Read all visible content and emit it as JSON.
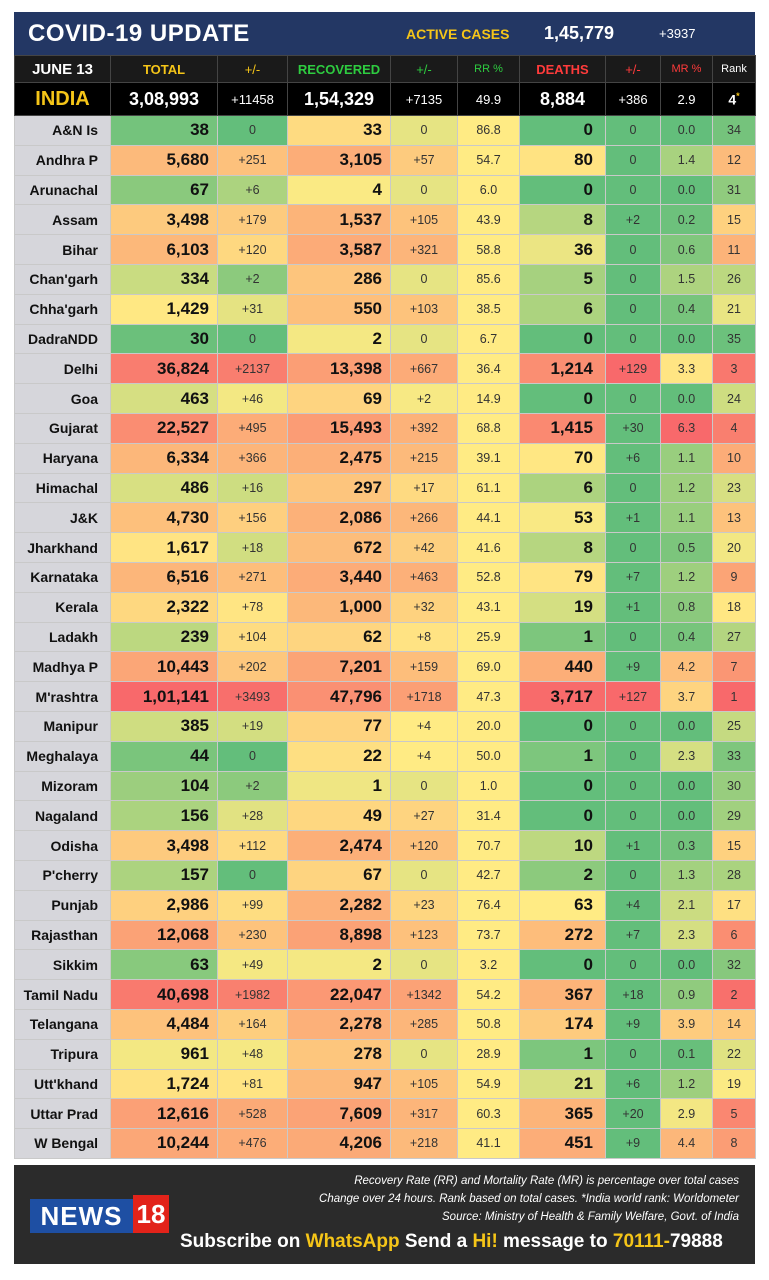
{
  "header": {
    "title": "COVID-19 UPDATE",
    "active_label": "ACTIVE CASES",
    "active_value": "1,45,779",
    "active_delta": "+3937"
  },
  "columns": {
    "date": "JUNE 13",
    "total": "TOTAL",
    "total_delta": "+/-",
    "recovered": "RECOVERED",
    "recovered_delta": "+/-",
    "rr": "RR %",
    "deaths": "DEATHS",
    "deaths_delta": "+/-",
    "mr": "MR %",
    "rank": "Rank"
  },
  "column_colors": {
    "total": "#f5c518",
    "recovered": "#2ecc40",
    "rr": "#2ecc40",
    "deaths": "#ff3b3b",
    "mr": "#ff3b3b"
  },
  "india": {
    "name": "INDIA",
    "total": "3,08,993",
    "total_delta": "+11458",
    "recovered": "1,54,329",
    "recovered_delta": "+7135",
    "rr": "49.9",
    "deaths": "8,884",
    "deaths_delta": "+386",
    "mr": "2.9",
    "rank": "4",
    "rank_mark": "*"
  },
  "rows": [
    {
      "state": "A&N Is",
      "total": "38",
      "td": "0",
      "rec": "33",
      "rd": "0",
      "rr": "86.8",
      "deaths": "0",
      "dd": "0",
      "mr": "0.0",
      "rank": "34"
    },
    {
      "state": "Andhra P",
      "total": "5,680",
      "td": "+251",
      "rec": "3,105",
      "rd": "+57",
      "rr": "54.7",
      "deaths": "80",
      "dd": "0",
      "mr": "1.4",
      "rank": "12"
    },
    {
      "state": "Arunachal",
      "total": "67",
      "td": "+6",
      "rec": "4",
      "rd": "0",
      "rr": "6.0",
      "deaths": "0",
      "dd": "0",
      "mr": "0.0",
      "rank": "31"
    },
    {
      "state": "Assam",
      "total": "3,498",
      "td": "+179",
      "rec": "1,537",
      "rd": "+105",
      "rr": "43.9",
      "deaths": "8",
      "dd": "+2",
      "mr": "0.2",
      "rank": "15"
    },
    {
      "state": "Bihar",
      "total": "6,103",
      "td": "+120",
      "rec": "3,587",
      "rd": "+321",
      "rr": "58.8",
      "deaths": "36",
      "dd": "0",
      "mr": "0.6",
      "rank": "11"
    },
    {
      "state": "Chan'garh",
      "total": "334",
      "td": "+2",
      "rec": "286",
      "rd": "0",
      "rr": "85.6",
      "deaths": "5",
      "dd": "0",
      "mr": "1.5",
      "rank": "26"
    },
    {
      "state": "Chha'garh",
      "total": "1,429",
      "td": "+31",
      "rec": "550",
      "rd": "+103",
      "rr": "38.5",
      "deaths": "6",
      "dd": "0",
      "mr": "0.4",
      "rank": "21"
    },
    {
      "state": "DadraNDD",
      "total": "30",
      "td": "0",
      "rec": "2",
      "rd": "0",
      "rr": "6.7",
      "deaths": "0",
      "dd": "0",
      "mr": "0.0",
      "rank": "35"
    },
    {
      "state": "Delhi",
      "total": "36,824",
      "td": "+2137",
      "rec": "13,398",
      "rd": "+667",
      "rr": "36.4",
      "deaths": "1,214",
      "dd": "+129",
      "mr": "3.3",
      "rank": "3"
    },
    {
      "state": "Goa",
      "total": "463",
      "td": "+46",
      "rec": "69",
      "rd": "+2",
      "rr": "14.9",
      "deaths": "0",
      "dd": "0",
      "mr": "0.0",
      "rank": "24"
    },
    {
      "state": "Gujarat",
      "total": "22,527",
      "td": "+495",
      "rec": "15,493",
      "rd": "+392",
      "rr": "68.8",
      "deaths": "1,415",
      "dd": "+30",
      "mr": "6.3",
      "rank": "4"
    },
    {
      "state": "Haryana",
      "total": "6,334",
      "td": "+366",
      "rec": "2,475",
      "rd": "+215",
      "rr": "39.1",
      "deaths": "70",
      "dd": "+6",
      "mr": "1.1",
      "rank": "10"
    },
    {
      "state": "Himachal",
      "total": "486",
      "td": "+16",
      "rec": "297",
      "rd": "+17",
      "rr": "61.1",
      "deaths": "6",
      "dd": "0",
      "mr": "1.2",
      "rank": "23"
    },
    {
      "state": "J&K",
      "total": "4,730",
      "td": "+156",
      "rec": "2,086",
      "rd": "+266",
      "rr": "44.1",
      "deaths": "53",
      "dd": "+1",
      "mr": "1.1",
      "rank": "13"
    },
    {
      "state": "Jharkhand",
      "total": "1,617",
      "td": "+18",
      "rec": "672",
      "rd": "+42",
      "rr": "41.6",
      "deaths": "8",
      "dd": "0",
      "mr": "0.5",
      "rank": "20"
    },
    {
      "state": "Karnataka",
      "total": "6,516",
      "td": "+271",
      "rec": "3,440",
      "rd": "+463",
      "rr": "52.8",
      "deaths": "79",
      "dd": "+7",
      "mr": "1.2",
      "rank": "9"
    },
    {
      "state": "Kerala",
      "total": "2,322",
      "td": "+78",
      "rec": "1,000",
      "rd": "+32",
      "rr": "43.1",
      "deaths": "19",
      "dd": "+1",
      "mr": "0.8",
      "rank": "18"
    },
    {
      "state": "Ladakh",
      "total": "239",
      "td": "+104",
      "rec": "62",
      "rd": "+8",
      "rr": "25.9",
      "deaths": "1",
      "dd": "0",
      "mr": "0.4",
      "rank": "27"
    },
    {
      "state": "Madhya P",
      "total": "10,443",
      "td": "+202",
      "rec": "7,201",
      "rd": "+159",
      "rr": "69.0",
      "deaths": "440",
      "dd": "+9",
      "mr": "4.2",
      "rank": "7"
    },
    {
      "state": "M'rashtra",
      "total": "1,01,141",
      "td": "+3493",
      "rec": "47,796",
      "rd": "+1718",
      "rr": "47.3",
      "deaths": "3,717",
      "dd": "+127",
      "mr": "3.7",
      "rank": "1"
    },
    {
      "state": "Manipur",
      "total": "385",
      "td": "+19",
      "rec": "77",
      "rd": "+4",
      "rr": "20.0",
      "deaths": "0",
      "dd": "0",
      "mr": "0.0",
      "rank": "25"
    },
    {
      "state": "Meghalaya",
      "total": "44",
      "td": "0",
      "rec": "22",
      "rd": "+4",
      "rr": "50.0",
      "deaths": "1",
      "dd": "0",
      "mr": "2.3",
      "rank": "33"
    },
    {
      "state": "Mizoram",
      "total": "104",
      "td": "+2",
      "rec": "1",
      "rd": "0",
      "rr": "1.0",
      "deaths": "0",
      "dd": "0",
      "mr": "0.0",
      "rank": "30"
    },
    {
      "state": "Nagaland",
      "total": "156",
      "td": "+28",
      "rec": "49",
      "rd": "+27",
      "rr": "31.4",
      "deaths": "0",
      "dd": "0",
      "mr": "0.0",
      "rank": "29"
    },
    {
      "state": "Odisha",
      "total": "3,498",
      "td": "+112",
      "rec": "2,474",
      "rd": "+120",
      "rr": "70.7",
      "deaths": "10",
      "dd": "+1",
      "mr": "0.3",
      "rank": "15"
    },
    {
      "state": "P'cherry",
      "total": "157",
      "td": "0",
      "rec": "67",
      "rd": "0",
      "rr": "42.7",
      "deaths": "2",
      "dd": "0",
      "mr": "1.3",
      "rank": "28"
    },
    {
      "state": "Punjab",
      "total": "2,986",
      "td": "+99",
      "rec": "2,282",
      "rd": "+23",
      "rr": "76.4",
      "deaths": "63",
      "dd": "+4",
      "mr": "2.1",
      "rank": "17"
    },
    {
      "state": "Rajasthan",
      "total": "12,068",
      "td": "+230",
      "rec": "8,898",
      "rd": "+123",
      "rr": "73.7",
      "deaths": "272",
      "dd": "+7",
      "mr": "2.3",
      "rank": "6"
    },
    {
      "state": "Sikkim",
      "total": "63",
      "td": "+49",
      "rec": "2",
      "rd": "0",
      "rr": "3.2",
      "deaths": "0",
      "dd": "0",
      "mr": "0.0",
      "rank": "32"
    },
    {
      "state": "Tamil Nadu",
      "total": "40,698",
      "td": "+1982",
      "rec": "22,047",
      "rd": "+1342",
      "rr": "54.2",
      "deaths": "367",
      "dd": "+18",
      "mr": "0.9",
      "rank": "2"
    },
    {
      "state": "Telangana",
      "total": "4,484",
      "td": "+164",
      "rec": "2,278",
      "rd": "+285",
      "rr": "50.8",
      "deaths": "174",
      "dd": "+9",
      "mr": "3.9",
      "rank": "14"
    },
    {
      "state": "Tripura",
      "total": "961",
      "td": "+48",
      "rec": "278",
      "rd": "0",
      "rr": "28.9",
      "deaths": "1",
      "dd": "0",
      "mr": "0.1",
      "rank": "22"
    },
    {
      "state": "Utt'khand",
      "total": "1,724",
      "td": "+81",
      "rec": "947",
      "rd": "+105",
      "rr": "54.9",
      "deaths": "21",
      "dd": "+6",
      "mr": "1.2",
      "rank": "19"
    },
    {
      "state": "Uttar Prad",
      "total": "12,616",
      "td": "+528",
      "rec": "7,609",
      "rd": "+317",
      "rr": "60.3",
      "deaths": "365",
      "dd": "+20",
      "mr": "2.9",
      "rank": "5"
    },
    {
      "state": "W Bengal",
      "total": "10,244",
      "td": "+476",
      "rec": "4,206",
      "rd": "+218",
      "rr": "41.1",
      "deaths": "451",
      "dd": "+9",
      "mr": "4.4",
      "rank": "8"
    }
  ],
  "footer": {
    "note1": "Recovery Rate (RR) and Mortality Rate (MR) is percentage over total cases",
    "note2": "Change over 24 hours. Rank based on total cases. *India world rank: Worldometer",
    "note3": "Source: Ministry of Health & Family Welfare, Govt. of India",
    "logo_text": "NEWS",
    "logo_num": "18",
    "sub1": "Subscribe on ",
    "sub_app": "WhatsApp",
    "sub2": " Send a ",
    "sub_hi": "Hi!",
    "sub3": " message to ",
    "sub_num1": "70111-",
    "sub_num2": "79888"
  }
}
